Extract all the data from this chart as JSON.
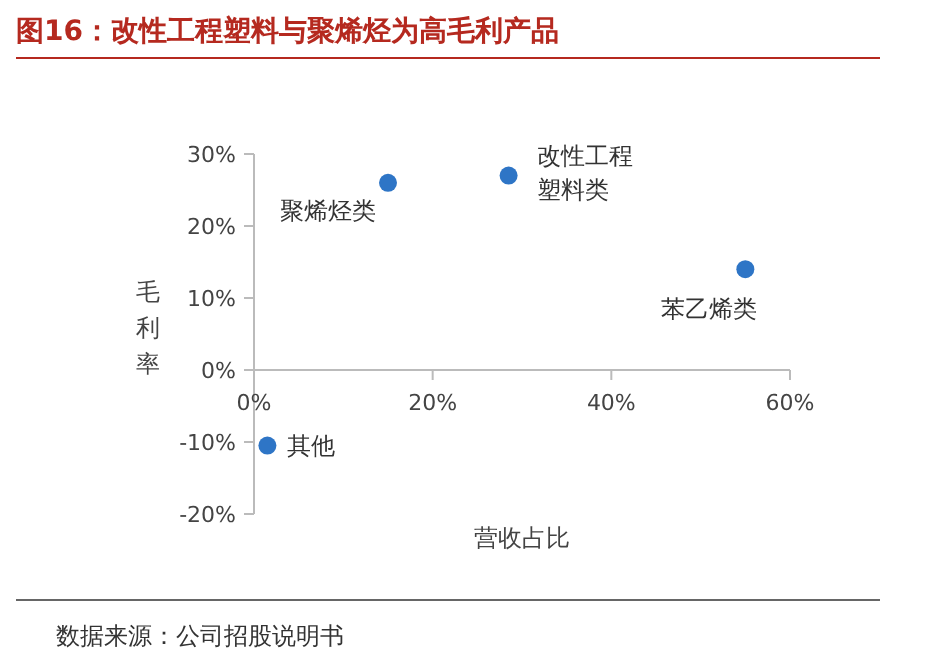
{
  "chart_data": {
    "type": "scatter",
    "title": "图16：改性工程塑料与聚烯烃为高毛利产品",
    "xlabel": "营收占比",
    "ylabel": "毛利率",
    "x": [
      15,
      28.5,
      55,
      1.5
    ],
    "values": [
      26,
      27,
      14,
      -10.5
    ],
    "color": "#2e75c6",
    "marker": "circle",
    "grid": false,
    "xlim": [
      0,
      60
    ],
    "xticks": [
      {
        "value": 0,
        "label": "0%"
      },
      {
        "value": 20,
        "label": "20%"
      },
      {
        "value": 40,
        "label": "40%"
      },
      {
        "value": 60,
        "label": "60%"
      }
    ],
    "ylim": [
      -20,
      30
    ],
    "yticks": [
      {
        "value": -20,
        "label": "-20%"
      },
      {
        "value": -10,
        "label": "-10%"
      },
      {
        "value": 0,
        "label": "0%"
      },
      {
        "value": 10,
        "label": "10%"
      },
      {
        "value": 20,
        "label": "20%"
      },
      {
        "value": 30,
        "label": "30%"
      }
    ],
    "annotations": [
      {
        "text": "聚烯烃类",
        "x": 15,
        "y": 26
      },
      {
        "text": "改性工程塑料类",
        "x": 28.5,
        "y": 27
      },
      {
        "text": "苯乙烯类",
        "x": 55,
        "y": 14
      },
      {
        "text": "其他",
        "x": 1.5,
        "y": -10.5
      },
      "数据来源：公司招股说明书"
    ]
  }
}
